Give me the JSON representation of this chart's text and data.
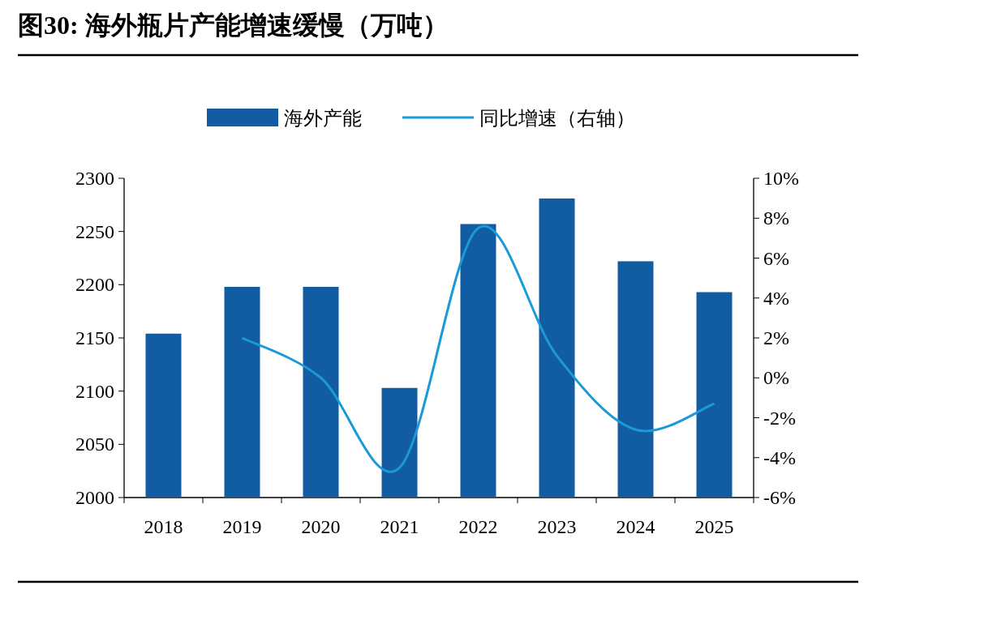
{
  "chart_data": {
    "type": "bar",
    "title": "图30:  海外瓶片产能增速缓慢（万吨）",
    "categories": [
      "2018",
      "2019",
      "2020",
      "2021",
      "2022",
      "2023",
      "2024",
      "2025"
    ],
    "series": [
      {
        "name": "海外产能",
        "color": "#125ca1",
        "values": [
          2154,
          2198,
          2198,
          2103,
          2257,
          2281,
          2222,
          2193
        ]
      },
      {
        "name": "同比增速（右轴）",
        "type": "line",
        "axis": "y2",
        "color": "#1a9ad9",
        "values": [
          null,
          2.0,
          0.0,
          -4.5,
          7.5,
          1.1,
          -2.6,
          -1.3
        ]
      }
    ],
    "ylim": [
      2000,
      2300
    ],
    "yticks": [
      2000,
      2050,
      2100,
      2150,
      2200,
      2250,
      2300
    ],
    "y2lim": [
      -6,
      10
    ],
    "y2ticks": [
      {
        "value": -6,
        "label": "-6%"
      },
      {
        "value": -4,
        "label": "-4%"
      },
      {
        "value": -2,
        "label": "-2%"
      },
      {
        "value": 0,
        "label": "0%"
      },
      {
        "value": 2,
        "label": "2%"
      },
      {
        "value": 4,
        "label": "4%"
      },
      {
        "value": 6,
        "label": "6%"
      },
      {
        "value": 8,
        "label": "8%"
      },
      {
        "value": 10,
        "label": "10%"
      }
    ],
    "legend": "top",
    "grid": false
  }
}
